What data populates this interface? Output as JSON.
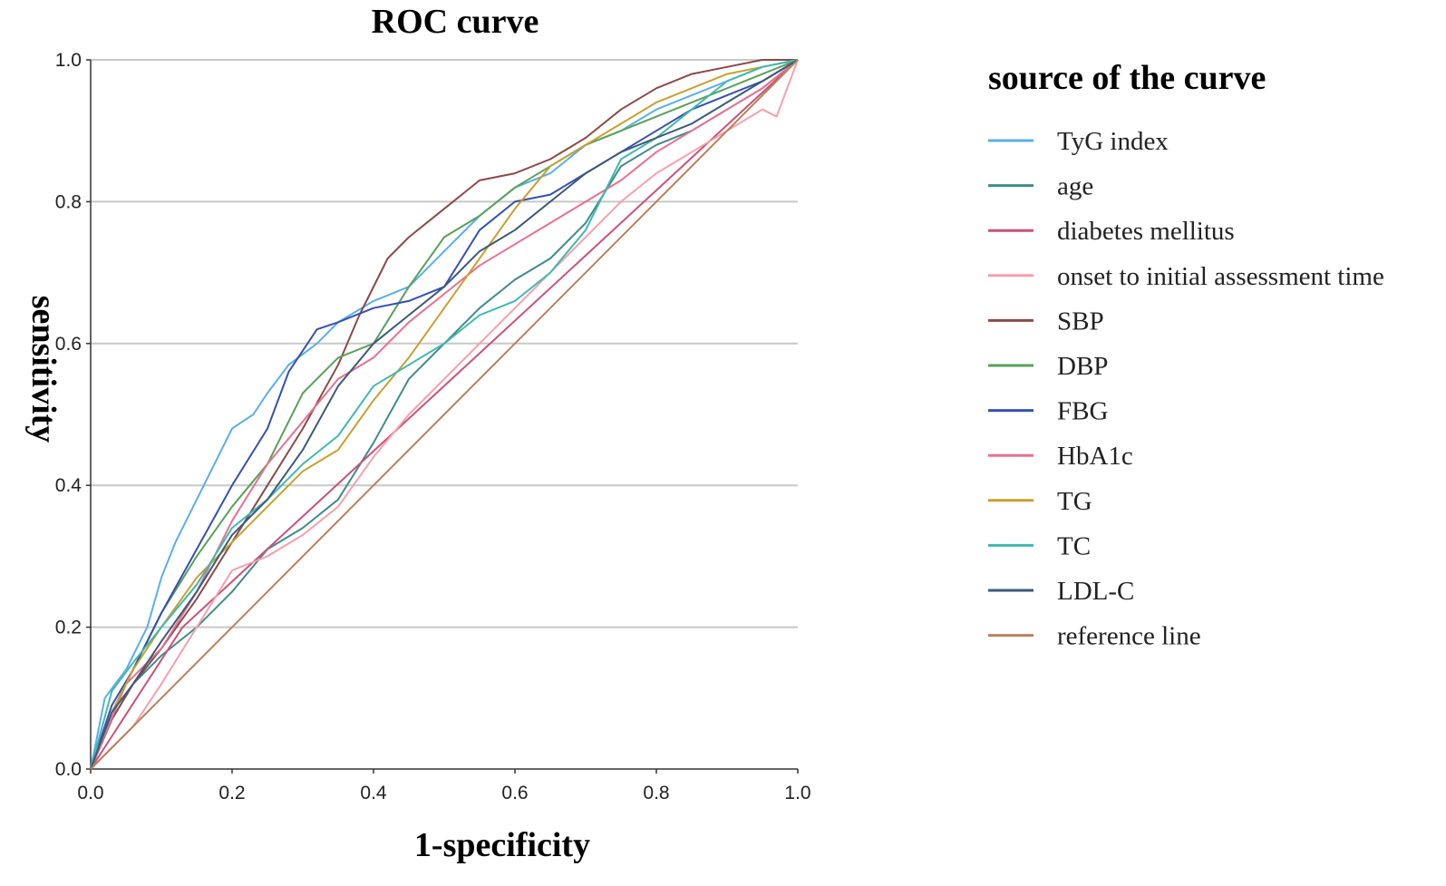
{
  "chart_data": {
    "type": "line",
    "title": "ROC curve",
    "xlabel": "1-specificity",
    "ylabel": "sensitivity",
    "xlim": [
      0,
      1
    ],
    "ylim": [
      0,
      1
    ],
    "xticks": [
      "0.0",
      "0.2",
      "0.4",
      "0.6",
      "0.8",
      "1.0"
    ],
    "yticks": [
      "0.0",
      "0.2",
      "0.4",
      "0.6",
      "0.8",
      "1.0"
    ],
    "grid": "horizontal",
    "legend_title": "source of the curve",
    "legend_position": "right",
    "series": [
      {
        "name": "TyG index",
        "color": "#5aaee8",
        "x": [
          0,
          0.02,
          0.05,
          0.08,
          0.1,
          0.12,
          0.15,
          0.18,
          0.2,
          0.23,
          0.25,
          0.28,
          0.32,
          0.35,
          0.4,
          0.45,
          0.5,
          0.55,
          0.6,
          0.65,
          0.7,
          0.75,
          0.8,
          0.85,
          0.9,
          0.95,
          1.0
        ],
        "y": [
          0,
          0.1,
          0.14,
          0.2,
          0.27,
          0.32,
          0.38,
          0.44,
          0.48,
          0.5,
          0.53,
          0.57,
          0.6,
          0.63,
          0.66,
          0.68,
          0.73,
          0.78,
          0.82,
          0.84,
          0.88,
          0.9,
          0.93,
          0.95,
          0.97,
          0.99,
          1.0
        ]
      },
      {
        "name": "age",
        "color": "#3f8a8a",
        "x": [
          0,
          0.03,
          0.06,
          0.1,
          0.15,
          0.2,
          0.25,
          0.3,
          0.35,
          0.4,
          0.45,
          0.5,
          0.55,
          0.6,
          0.65,
          0.7,
          0.75,
          0.8,
          0.85,
          0.9,
          0.95,
          1.0
        ],
        "y": [
          0,
          0.07,
          0.12,
          0.16,
          0.2,
          0.25,
          0.31,
          0.34,
          0.38,
          0.46,
          0.55,
          0.6,
          0.65,
          0.69,
          0.72,
          0.77,
          0.85,
          0.88,
          0.9,
          0.93,
          0.96,
          1.0
        ]
      },
      {
        "name": "diabetes mellitus",
        "color": "#c8527a",
        "x": [
          0,
          0.13,
          1.0
        ],
        "y": [
          0,
          0.2,
          1.0
        ]
      },
      {
        "name": "onset to initial assessment time",
        "color": "#f5a0aa",
        "x": [
          0,
          0.03,
          0.06,
          0.1,
          0.15,
          0.2,
          0.25,
          0.3,
          0.35,
          0.4,
          0.45,
          0.5,
          0.55,
          0.6,
          0.65,
          0.7,
          0.75,
          0.8,
          0.85,
          0.9,
          0.95,
          0.97,
          1.0
        ],
        "y": [
          0,
          0.03,
          0.06,
          0.12,
          0.2,
          0.28,
          0.3,
          0.33,
          0.37,
          0.44,
          0.5,
          0.55,
          0.6,
          0.65,
          0.7,
          0.75,
          0.8,
          0.84,
          0.87,
          0.9,
          0.93,
          0.92,
          1.0
        ]
      },
      {
        "name": "SBP",
        "color": "#8a4a4a",
        "x": [
          0,
          0.03,
          0.06,
          0.1,
          0.15,
          0.2,
          0.25,
          0.3,
          0.35,
          0.38,
          0.42,
          0.45,
          0.5,
          0.55,
          0.6,
          0.65,
          0.7,
          0.75,
          0.8,
          0.85,
          0.9,
          0.95,
          1.0
        ],
        "y": [
          0,
          0.07,
          0.12,
          0.17,
          0.24,
          0.32,
          0.4,
          0.48,
          0.57,
          0.64,
          0.72,
          0.75,
          0.79,
          0.83,
          0.84,
          0.86,
          0.89,
          0.93,
          0.96,
          0.98,
          0.99,
          1.0,
          1.0
        ]
      },
      {
        "name": "DBP",
        "color": "#5aa05a",
        "x": [
          0,
          0.03,
          0.06,
          0.1,
          0.15,
          0.2,
          0.25,
          0.3,
          0.35,
          0.4,
          0.45,
          0.5,
          0.55,
          0.6,
          0.65,
          0.7,
          0.75,
          0.8,
          0.85,
          0.9,
          0.95,
          1.0
        ],
        "y": [
          0,
          0.08,
          0.14,
          0.22,
          0.3,
          0.37,
          0.43,
          0.53,
          0.58,
          0.6,
          0.68,
          0.75,
          0.78,
          0.82,
          0.85,
          0.88,
          0.9,
          0.92,
          0.94,
          0.96,
          0.98,
          1.0
        ]
      },
      {
        "name": "FBG",
        "color": "#3550b0",
        "x": [
          0,
          0.03,
          0.06,
          0.1,
          0.15,
          0.2,
          0.25,
          0.28,
          0.32,
          0.35,
          0.4,
          0.45,
          0.5,
          0.55,
          0.6,
          0.65,
          0.7,
          0.75,
          0.8,
          0.85,
          0.9,
          0.95,
          1.0
        ],
        "y": [
          0,
          0.09,
          0.14,
          0.22,
          0.31,
          0.4,
          0.48,
          0.56,
          0.62,
          0.63,
          0.65,
          0.66,
          0.68,
          0.76,
          0.8,
          0.81,
          0.84,
          0.87,
          0.9,
          0.93,
          0.95,
          0.97,
          1.0
        ]
      },
      {
        "name": "HbA1c",
        "color": "#e87090",
        "x": [
          0,
          0.05,
          0.1,
          0.15,
          0.2,
          0.25,
          0.3,
          0.35,
          0.4,
          0.45,
          0.5,
          0.55,
          0.6,
          0.65,
          0.7,
          0.75,
          0.8,
          0.85,
          0.9,
          0.95,
          1.0
        ],
        "y": [
          0,
          0.12,
          0.17,
          0.25,
          0.35,
          0.43,
          0.49,
          0.55,
          0.58,
          0.63,
          0.67,
          0.71,
          0.74,
          0.77,
          0.8,
          0.83,
          0.87,
          0.9,
          0.93,
          0.96,
          1.0
        ]
      },
      {
        "name": "TG",
        "color": "#c8a030",
        "x": [
          0,
          0.03,
          0.06,
          0.1,
          0.15,
          0.2,
          0.25,
          0.3,
          0.35,
          0.4,
          0.45,
          0.5,
          0.55,
          0.6,
          0.65,
          0.7,
          0.75,
          0.8,
          0.85,
          0.9,
          0.95,
          1.0
        ],
        "y": [
          0,
          0.08,
          0.14,
          0.2,
          0.27,
          0.32,
          0.37,
          0.42,
          0.45,
          0.52,
          0.58,
          0.65,
          0.72,
          0.79,
          0.85,
          0.88,
          0.91,
          0.94,
          0.96,
          0.98,
          0.99,
          1.0
        ]
      },
      {
        "name": "TC",
        "color": "#40b8b0",
        "x": [
          0,
          0.03,
          0.06,
          0.1,
          0.15,
          0.2,
          0.25,
          0.3,
          0.35,
          0.4,
          0.45,
          0.5,
          0.55,
          0.6,
          0.65,
          0.7,
          0.75,
          0.8,
          0.85,
          0.9,
          0.95,
          1.0
        ],
        "y": [
          0,
          0.11,
          0.15,
          0.2,
          0.26,
          0.34,
          0.38,
          0.43,
          0.47,
          0.54,
          0.57,
          0.6,
          0.64,
          0.66,
          0.7,
          0.76,
          0.86,
          0.89,
          0.93,
          0.97,
          0.99,
          1.0
        ]
      },
      {
        "name": "LDL-C",
        "color": "#3a5a78",
        "x": [
          0,
          0.03,
          0.06,
          0.1,
          0.15,
          0.2,
          0.25,
          0.3,
          0.35,
          0.4,
          0.45,
          0.5,
          0.55,
          0.6,
          0.65,
          0.7,
          0.75,
          0.8,
          0.85,
          0.9,
          0.95,
          1.0
        ],
        "y": [
          0,
          0.08,
          0.12,
          0.18,
          0.25,
          0.33,
          0.38,
          0.45,
          0.54,
          0.6,
          0.64,
          0.68,
          0.73,
          0.76,
          0.8,
          0.84,
          0.87,
          0.89,
          0.91,
          0.94,
          0.97,
          1.0
        ]
      },
      {
        "name": "reference line",
        "color": "#b8825a",
        "x": [
          0,
          1.0
        ],
        "y": [
          0,
          1.0
        ]
      }
    ]
  }
}
